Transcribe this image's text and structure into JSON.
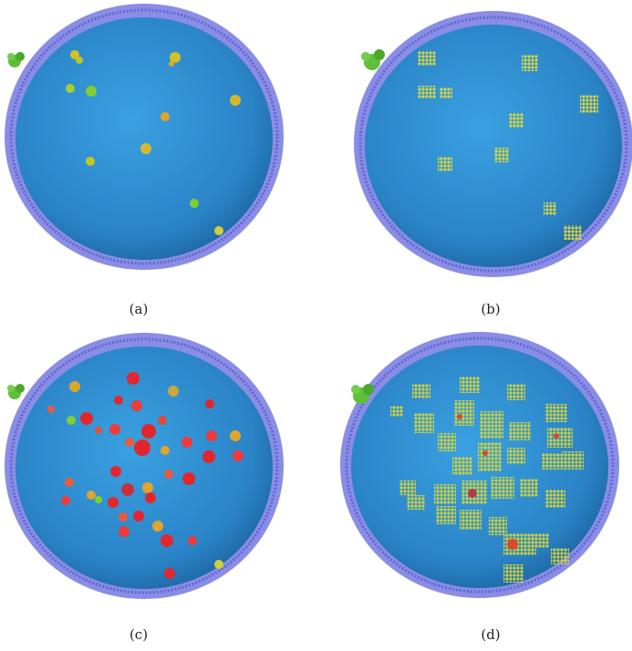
{
  "figure": {
    "panels": [
      {
        "id": "a",
        "caption": "(a)",
        "particle_style": "blob",
        "particle_colors": [
          "#c9c41f",
          "#7fcf34",
          "#e0a52a"
        ]
      },
      {
        "id": "b",
        "caption": "(b)",
        "particle_style": "grid",
        "particle_colors": [
          "#d8d640",
          "#b3cf2f"
        ]
      },
      {
        "id": "c",
        "caption": "(c)",
        "particle_style": "blob",
        "particle_colors": [
          "#e3262d",
          "#ef5a3a",
          "#e0a52a",
          "#7fcf34"
        ]
      },
      {
        "id": "d",
        "caption": "(d)",
        "particle_style": "grid",
        "particle_colors": [
          "#cfd23a",
          "#b6cc2e",
          "#d94a2c"
        ]
      }
    ],
    "colors": {
      "sphere_inner": "#2f8fd1",
      "sphere_edge": "#1f6aa8",
      "membrane": "#8a8de6",
      "membrane_dark": "#5f66cf",
      "external_cluster": "#5fbf3a"
    }
  }
}
